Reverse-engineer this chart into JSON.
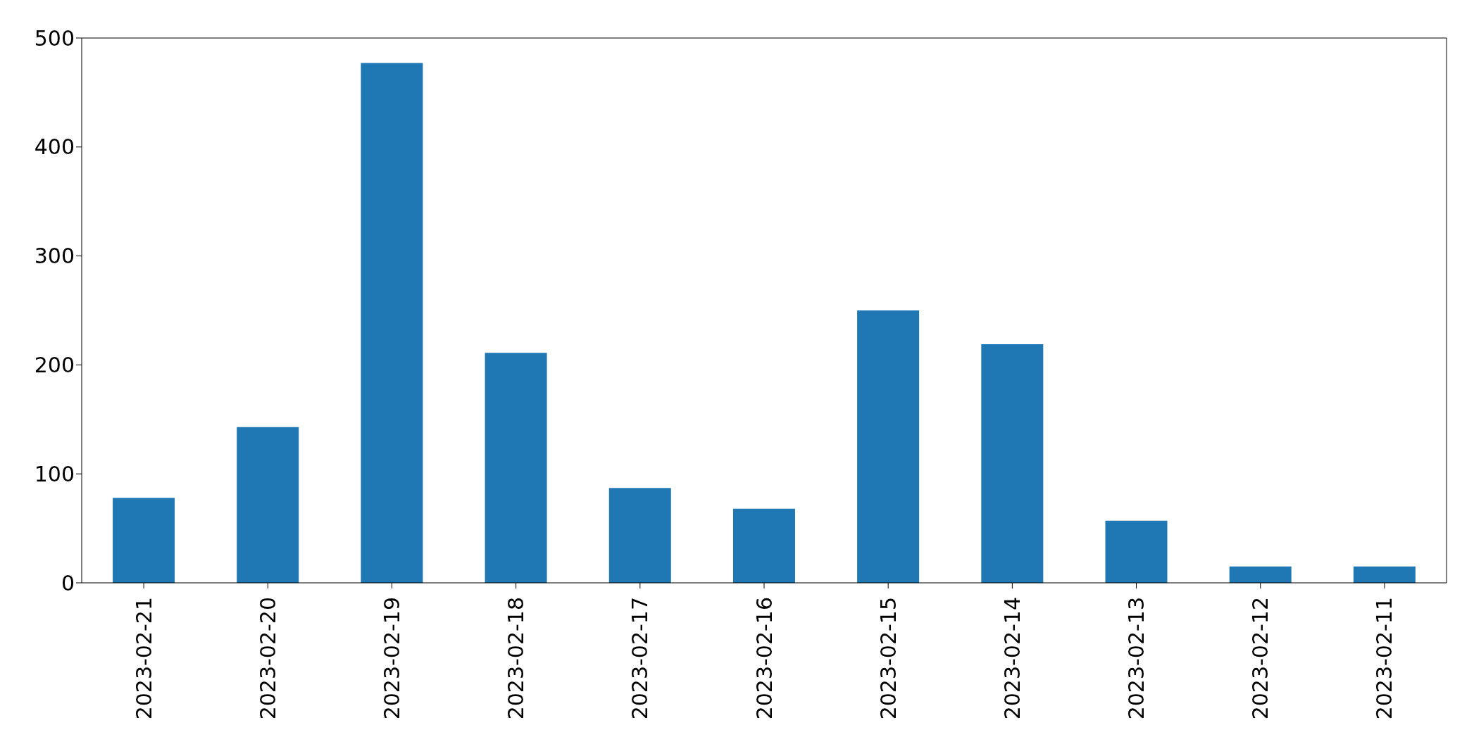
{
  "chart_data": {
    "type": "bar",
    "categories": [
      "2023-02-21",
      "2023-02-20",
      "2023-02-19",
      "2023-02-18",
      "2023-02-17",
      "2023-02-16",
      "2023-02-15",
      "2023-02-14",
      "2023-02-13",
      "2023-02-12",
      "2023-02-11"
    ],
    "values": [
      78,
      143,
      477,
      211,
      87,
      68,
      250,
      219,
      57,
      15,
      15
    ],
    "color": "#1f77b4",
    "ylim": [
      0,
      500
    ],
    "yticks": [
      0,
      100,
      200,
      300,
      400,
      500
    ],
    "grid": false,
    "legend": false
  }
}
